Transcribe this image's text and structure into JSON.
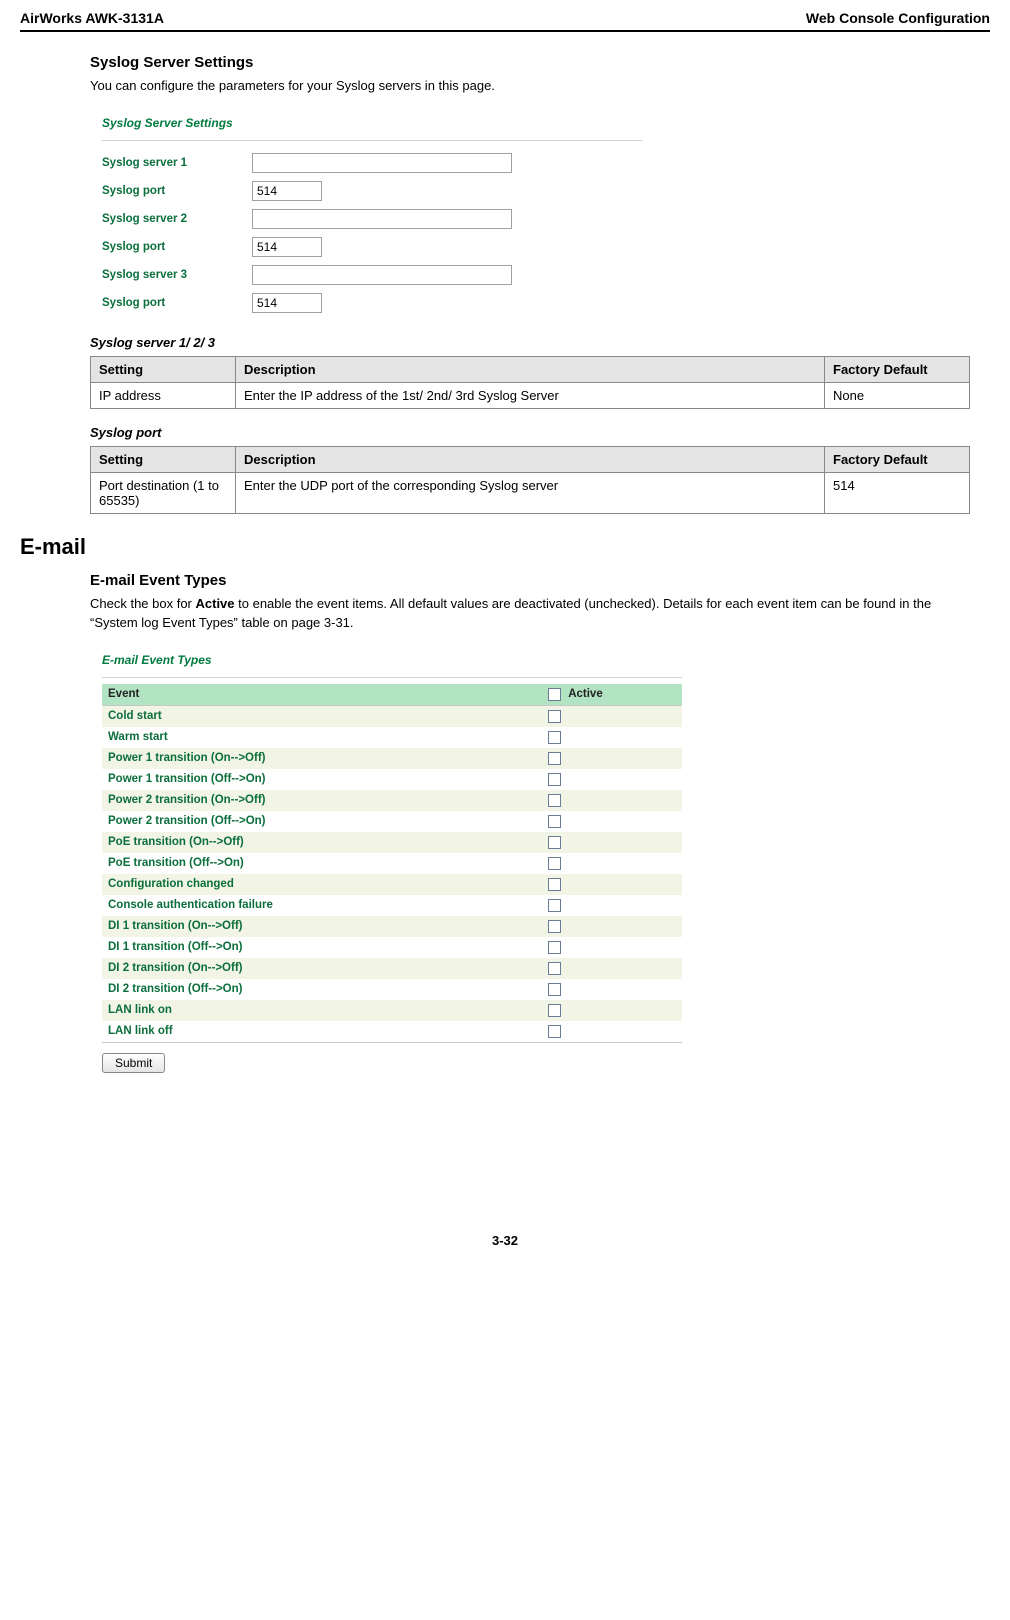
{
  "header": {
    "left": "AirWorks AWK-3131A",
    "right": "Web Console Configuration"
  },
  "syslog": {
    "title": "Syslog Server Settings",
    "intro": "You can configure the parameters for your Syslog servers in this page.",
    "shot_title": "Syslog Server Settings",
    "rows": [
      {
        "label": "Syslog server 1",
        "type": "long",
        "value": ""
      },
      {
        "label": "Syslog port",
        "type": "short",
        "value": "514"
      },
      {
        "label": "Syslog server 2",
        "type": "long",
        "value": ""
      },
      {
        "label": "Syslog port",
        "type": "short",
        "value": "514"
      },
      {
        "label": "Syslog server 3",
        "type": "long",
        "value": ""
      },
      {
        "label": "Syslog port",
        "type": "short",
        "value": "514"
      }
    ],
    "table1": {
      "caption": "Syslog server 1/ 2/ 3",
      "headers": [
        "Setting",
        "Description",
        "Factory Default"
      ],
      "row": {
        "setting": "IP address",
        "desc": "Enter the IP address of the 1st/ 2nd/ 3rd Syslog Server",
        "def": "None"
      }
    },
    "table2": {
      "caption": "Syslog port",
      "headers": [
        "Setting",
        "Description",
        "Factory Default"
      ],
      "row": {
        "setting": "Port destination (1 to 65535)",
        "desc": "Enter the UDP port of the corresponding Syslog server",
        "def": "514"
      }
    }
  },
  "email": {
    "h2": "E-mail",
    "sub": "E-mail Event Types",
    "para_prefix": "Check the box for ",
    "para_bold": "Active",
    "para_suffix": " to enable the event items. All default values are deactivated (unchecked). Details for each event item can be found in the “System log Event Types” table on page 3-31.",
    "shot_title": "E-mail Event Types",
    "headers": {
      "event": "Event",
      "active": "Active"
    },
    "events": [
      "Cold start",
      "Warm start",
      "Power 1 transition (On-->Off)",
      "Power 1 transition (Off-->On)",
      "Power 2 transition (On-->Off)",
      "Power 2 transition (Off-->On)",
      "PoE transition (On-->Off)",
      "PoE transition (Off-->On)",
      "Configuration changed",
      "Console authentication failure",
      "DI 1 transition (On-->Off)",
      "DI 1 transition (Off-->On)",
      "DI 2 transition (On-->Off)",
      "DI 2 transition (Off-->On)",
      "LAN link on",
      "LAN link off"
    ],
    "submit": "Submit"
  },
  "page_num": "3-32",
  "style": {
    "event_header_bg": "#b2e4c4",
    "event_odd_bg": "#f2f5e5",
    "event_even_bg": "#ffffff",
    "green_text": "#0b6e3b"
  }
}
